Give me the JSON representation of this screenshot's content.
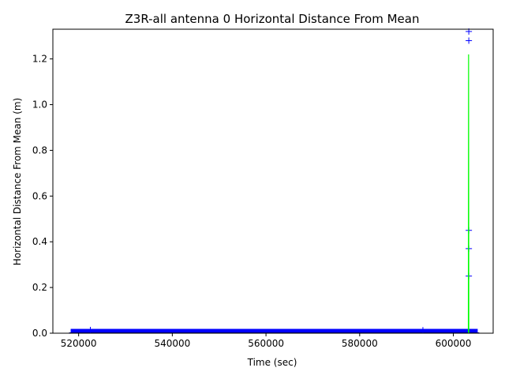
{
  "chart_data": {
    "type": "scatter",
    "title": "Z3R-all antenna 0 Horizontal Distance From Mean",
    "xlabel": "Time (sec)",
    "ylabel": "Horizontal Distance From Mean (m)",
    "xlim": [
      514500,
      608500
    ],
    "ylim": [
      0,
      1.33
    ],
    "xticks": [
      520000,
      540000,
      560000,
      580000,
      600000
    ],
    "yticks": [
      0.0,
      0.2,
      0.4,
      0.6,
      0.8,
      1.0,
      1.2
    ],
    "xtick_labels": [
      "520000",
      "540000",
      "560000",
      "580000",
      "600000"
    ],
    "ytick_labels": [
      "0.0",
      "0.2",
      "0.4",
      "0.6",
      "0.8",
      "1.0",
      "1.2"
    ],
    "grid": false,
    "colors": {
      "markers": "#0000ff",
      "line": "#00ff00",
      "axes": "#000000"
    },
    "series": [
      {
        "style": "markers",
        "marker": "+",
        "band": {
          "x_start": 518300,
          "x_end": 605200,
          "y_low": 0.0,
          "y_high": 0.012
        },
        "points": [
          {
            "x": 522500,
            "y": 0.014
          },
          {
            "x": 593500,
            "y": 0.013
          },
          {
            "x": 603300,
            "y": 1.32
          },
          {
            "x": 603300,
            "y": 1.28
          },
          {
            "x": 603300,
            "y": 0.45
          },
          {
            "x": 603300,
            "y": 0.37
          },
          {
            "x": 603300,
            "y": 0.25
          }
        ]
      },
      {
        "style": "line",
        "points": [
          {
            "x": 603200,
            "y": 0.0
          },
          {
            "x": 603250,
            "y": 1.22
          },
          {
            "x": 603300,
            "y": 0.0
          }
        ]
      }
    ]
  }
}
